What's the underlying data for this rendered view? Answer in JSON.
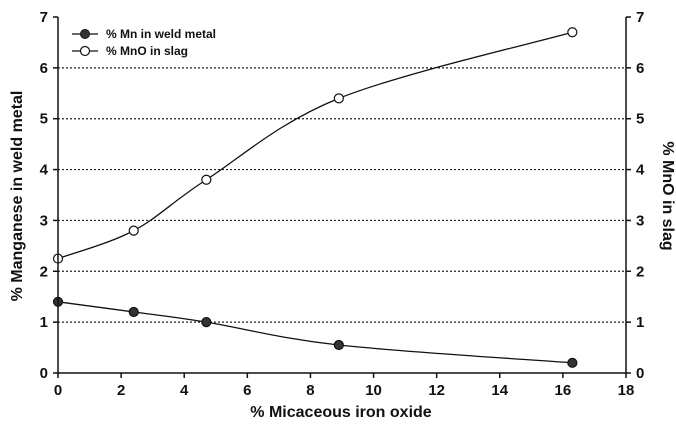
{
  "chart_data": {
    "type": "line",
    "xlabel": "% Micaceous iron oxide",
    "ylabel": "% Manganese in weld metal",
    "y2label": "% MnO in slag",
    "xlim": [
      0,
      18
    ],
    "ylim": [
      0,
      7
    ],
    "y2lim": [
      0,
      7
    ],
    "xticks": [
      0,
      2,
      4,
      6,
      8,
      10,
      12,
      14,
      16,
      18
    ],
    "yticks": [
      0,
      1,
      2,
      3,
      4,
      5,
      6,
      7
    ],
    "grid": "horizontal-dotted",
    "legend_position": "top-left",
    "series": [
      {
        "name": "% Mn in weld metal",
        "marker": "filled-circle",
        "axis": "left",
        "x": [
          0,
          2.4,
          4.7,
          8.9,
          16.3
        ],
        "values": [
          1.4,
          1.2,
          1.0,
          0.55,
          0.2
        ]
      },
      {
        "name": "% MnO in slag",
        "marker": "open-circle",
        "axis": "right",
        "x": [
          0,
          2.4,
          4.7,
          8.9,
          16.3
        ],
        "values": [
          2.25,
          2.8,
          3.8,
          5.4,
          6.7
        ]
      }
    ]
  }
}
